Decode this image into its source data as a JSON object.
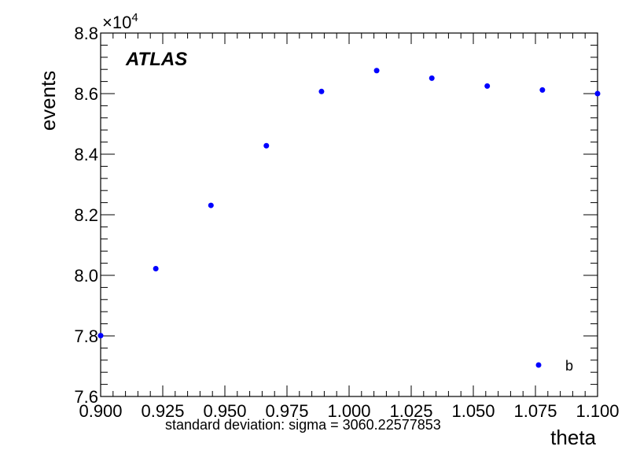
{
  "chart_data": {
    "type": "scatter",
    "title": "",
    "xlabel": "theta",
    "ylabel": "events",
    "y_multiplier_label": "×10",
    "y_multiplier_exponent": "4",
    "xlim": [
      0.9,
      1.1
    ],
    "ylim": [
      76000,
      88000
    ],
    "x_ticks": [
      "0.900",
      "0.925",
      "0.950",
      "0.975",
      "1.000",
      "1.025",
      "1.050",
      "1.075",
      "1.100"
    ],
    "y_ticks": [
      "7.6",
      "7.8",
      "8.0",
      "8.2",
      "8.4",
      "8.6",
      "8.8"
    ],
    "grid": false,
    "legend_position": "bottom-right",
    "series": [
      {
        "name": "b",
        "color": "#0000ff",
        "x": [
          0.9,
          0.9222,
          0.9444,
          0.9667,
          0.9889,
          1.0111,
          1.0333,
          1.0556,
          1.0778,
          1.1
        ],
        "y": [
          78010,
          80220,
          82310,
          84280,
          86070,
          86760,
          86510,
          86250,
          86120,
          86000
        ]
      }
    ],
    "experiment_label": "ATLAS",
    "annotation": "standard deviation: sigma = 3060.22577853"
  }
}
